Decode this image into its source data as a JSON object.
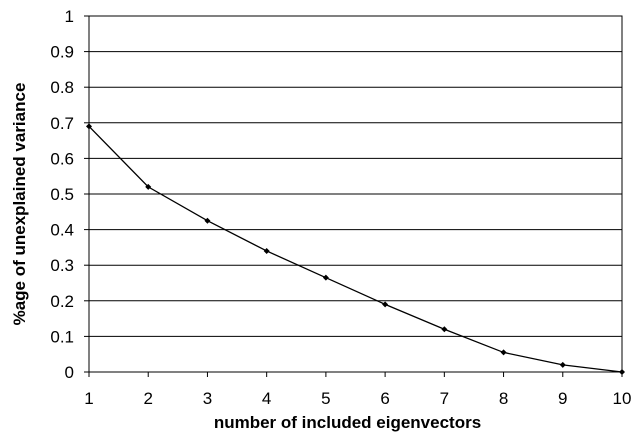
{
  "chart_data": {
    "type": "line",
    "title": "",
    "xlabel": "number of included eigenvectors",
    "ylabel": "%age of unexplained variance",
    "x": [
      1,
      2,
      3,
      4,
      5,
      6,
      7,
      8,
      9,
      10
    ],
    "series": [
      {
        "values": [
          0.69,
          0.52,
          0.425,
          0.34,
          0.265,
          0.19,
          0.12,
          0.055,
          0.02,
          0.0
        ]
      }
    ],
    "xlim": [
      1,
      10
    ],
    "ylim": [
      0,
      1
    ],
    "xticks": [
      "1",
      "2",
      "3",
      "4",
      "5",
      "6",
      "7",
      "8",
      "9",
      "10"
    ],
    "yticks": [
      "0",
      "0.1",
      "0.2",
      "0.3",
      "0.4",
      "0.5",
      "0.6",
      "0.7",
      "0.8",
      "0.9",
      "1"
    ],
    "grid": "horizontal",
    "legend": "none",
    "colors": {
      "line": "#000000",
      "grid": "#000000",
      "background": "#ffffff"
    }
  }
}
